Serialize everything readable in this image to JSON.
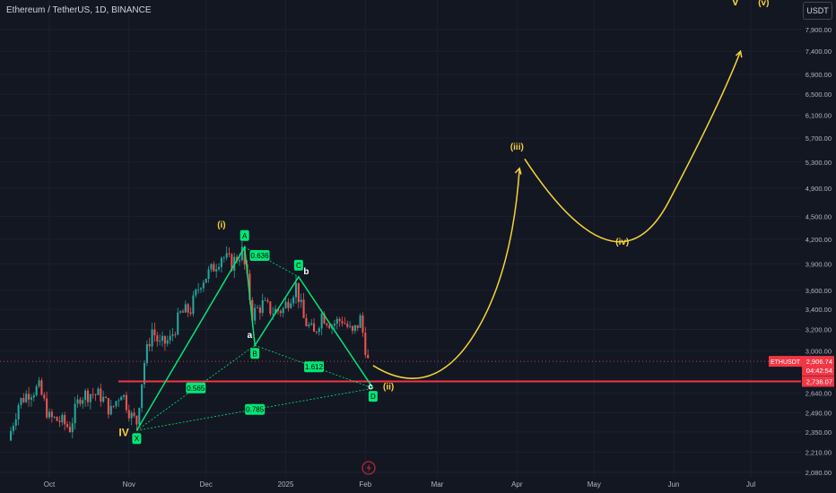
{
  "header": {
    "symbol_title": "Ethereum / TetherUS, 1D, BINANCE",
    "currency_button": "USDT"
  },
  "colors": {
    "background": "#131722",
    "up_candle": "#26a69a",
    "down_candle": "#ef5350",
    "pattern_green": "#00e676",
    "wave_yellow": "#f5d33a",
    "support_red": "#f23645"
  },
  "chart_data": {
    "type": "candlestick",
    "title": "Ethereum / TetherUS, 1D, BINANCE",
    "y_axis": {
      "scale": "log",
      "ticks": [
        7900,
        7400,
        6900,
        6500,
        6100,
        5700,
        5300,
        4900,
        4500,
        4200,
        3900,
        3600,
        3400,
        3200,
        3000,
        2640,
        2490,
        2350,
        2210,
        2080
      ],
      "tick_labels": [
        "7,900.00",
        "7,400.00",
        "6,900.00",
        "6,500.00",
        "6,100.00",
        "5,700.00",
        "5,300.00",
        "4,900.00",
        "4,500.00",
        "4,200.00",
        "3,900.00",
        "3,600.00",
        "3,400.00",
        "3,200.00",
        "3,000.00",
        "2,640.00",
        "2,490.00",
        "2,350.00",
        "2,210.00",
        "2,080.00"
      ]
    },
    "x_axis": {
      "labels": [
        {
          "text": "Oct",
          "date": "2024-10-01"
        },
        {
          "text": "Nov",
          "date": "2024-11-01"
        },
        {
          "text": "Dec",
          "date": "2024-12-01"
        },
        {
          "text": "2025",
          "date": "2025-01-01"
        },
        {
          "text": "Feb",
          "date": "2025-02-01"
        },
        {
          "text": "Mar",
          "date": "2025-03-01"
        },
        {
          "text": "Apr",
          "date": "2025-04-01"
        },
        {
          "text": "May",
          "date": "2025-05-01"
        },
        {
          "text": "Jun",
          "date": "2025-06-01"
        },
        {
          "text": "Jul",
          "date": "2025-07-01"
        }
      ]
    },
    "price_series": [
      {
        "date": "2024-09-16",
        "close": 2290
      },
      {
        "date": "2024-09-20",
        "close": 2560
      },
      {
        "date": "2024-09-24",
        "close": 2650
      },
      {
        "date": "2024-09-28",
        "close": 2680
      },
      {
        "date": "2024-10-02",
        "close": 2450
      },
      {
        "date": "2024-10-06",
        "close": 2430
      },
      {
        "date": "2024-10-10",
        "close": 2380
      },
      {
        "date": "2024-10-14",
        "close": 2620
      },
      {
        "date": "2024-10-18",
        "close": 2640
      },
      {
        "date": "2024-10-22",
        "close": 2620
      },
      {
        "date": "2024-10-26",
        "close": 2500
      },
      {
        "date": "2024-10-30",
        "close": 2660
      },
      {
        "date": "2024-11-03",
        "close": 2460
      },
      {
        "date": "2024-11-05",
        "close": 2420
      },
      {
        "date": "2024-11-08",
        "close": 2900
      },
      {
        "date": "2024-11-11",
        "close": 3200
      },
      {
        "date": "2024-11-14",
        "close": 3050
      },
      {
        "date": "2024-11-18",
        "close": 3100
      },
      {
        "date": "2024-11-22",
        "close": 3350
      },
      {
        "date": "2024-11-26",
        "close": 3400
      },
      {
        "date": "2024-11-30",
        "close": 3700
      },
      {
        "date": "2024-12-04",
        "close": 3820
      },
      {
        "date": "2024-12-08",
        "close": 4000
      },
      {
        "date": "2024-12-12",
        "close": 3900
      },
      {
        "date": "2024-12-16",
        "close": 4050
      },
      {
        "date": "2024-12-20",
        "close": 3350
      },
      {
        "date": "2024-12-24",
        "close": 3450
      },
      {
        "date": "2024-12-28",
        "close": 3380
      },
      {
        "date": "2025-01-01",
        "close": 3400
      },
      {
        "date": "2025-01-06",
        "close": 3650
      },
      {
        "date": "2025-01-09",
        "close": 3300
      },
      {
        "date": "2025-01-13",
        "close": 3150
      },
      {
        "date": "2025-01-16",
        "close": 3350
      },
      {
        "date": "2025-01-20",
        "close": 3250
      },
      {
        "date": "2025-01-24",
        "close": 3300
      },
      {
        "date": "2025-01-28",
        "close": 3150
      },
      {
        "date": "2025-01-31",
        "close": 3300
      },
      {
        "date": "2025-02-03",
        "close": 2906.74
      }
    ],
    "pattern_points": [
      {
        "label": "X",
        "date": "2024-11-04",
        "price": 2360
      },
      {
        "label": "A",
        "date": "2024-12-16",
        "price": 4100
      },
      {
        "label": "B",
        "date": "2024-12-20",
        "price": 3050
      },
      {
        "label": "C",
        "date": "2025-01-06",
        "price": 3750
      },
      {
        "label": "D",
        "date": "2025-02-04",
        "price": 2680
      }
    ],
    "pattern_ratios": [
      "0.636",
      "1.612",
      "0.565",
      "0.785"
    ],
    "wave_labels": [
      {
        "text": "(i)",
        "date": "2024-12-07",
        "price": 4350
      },
      {
        "text": "a",
        "date": "2024-12-18",
        "price": 3120
      },
      {
        "text": "b",
        "date": "2025-01-09",
        "price": 3780
      },
      {
        "text": "c",
        "date": "2025-02-03",
        "price": 2670
      },
      {
        "text": "(ii)",
        "date": "2025-02-10",
        "price": 2670
      },
      {
        "text": "IV",
        "date": "2024-10-30",
        "price": 2320
      },
      {
        "text": "(iii)",
        "date": "2025-04-01",
        "price": 5500
      },
      {
        "text": "(iv)",
        "date": "2025-05-12",
        "price": 4130
      },
      {
        "text": "V",
        "date": "2025-06-25",
        "price": 8500
      },
      {
        "text": "(v)",
        "date": "2025-07-06",
        "price": 8500
      }
    ],
    "projection_path": [
      {
        "date": "2025-02-04",
        "price": 2870
      },
      {
        "date": "2025-02-26",
        "price": 2710
      },
      {
        "date": "2025-03-14",
        "price": 3100
      },
      {
        "date": "2025-04-02",
        "price": 5200
      },
      {
        "date": "2025-04-04",
        "price": 5350
      },
      {
        "date": "2025-05-10",
        "price": 4350
      },
      {
        "date": "2025-05-30",
        "price": 4700
      },
      {
        "date": "2025-06-27",
        "price": 7400
      }
    ],
    "support_level": {
      "price": 2736.07,
      "label": "2,736.07"
    },
    "current_price": {
      "symbol": "ETHUSDT",
      "price": "2,906.74",
      "countdown": "04:42:54"
    }
  }
}
